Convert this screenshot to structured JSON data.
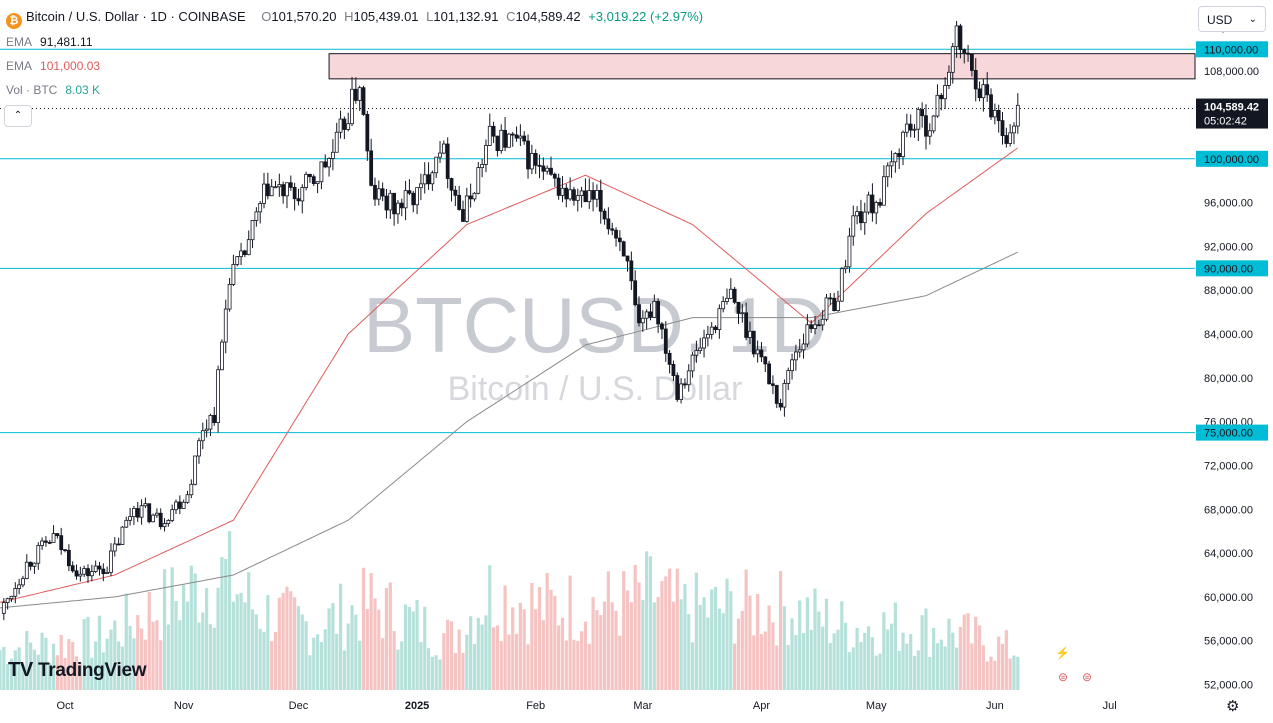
{
  "header": {
    "symbol_icon": "bitcoin-icon",
    "symbol_glyph": "₿",
    "title": "Bitcoin / U.S. Dollar · 1D · COINBASE",
    "open_key": "O",
    "open": "101,570.20",
    "high_key": "H",
    "high": "105,439.01",
    "low_key": "L",
    "low": "101,132.91",
    "close_key": "C",
    "close": "104,589.42",
    "change": "+3,019.22 (+2.97%)"
  },
  "indicators": [
    {
      "name": "EMA",
      "value": "91,481.11",
      "color": "#787b86"
    },
    {
      "name": "EMA",
      "value": "101,000.03",
      "color": "#e05a5a"
    },
    {
      "name": "Vol · BTC",
      "value": "8.03 K",
      "color": "#26a69a"
    }
  ],
  "collapse_glyph": "⌃",
  "currency": {
    "value": "USD",
    "chevron": "⌄"
  },
  "watermark": {
    "symbol": "BTCUSD, 1D",
    "name": "Bitcoin / U.S. Dollar"
  },
  "branding": {
    "logo_mark": "TV",
    "name": "TradingView"
  },
  "settings_glyph": "⚙",
  "colors": {
    "up": "#131722",
    "down": "#131722",
    "level_line": "#00bcd4",
    "resistance_zone": "#f8d7da",
    "ema_fast": "#e05a5a",
    "ema_slow": "#8a8a8a",
    "volume_up": "#a8dcd4",
    "volume_down": "#f4b8b8",
    "last_price_bg": "#131722",
    "level_label_bg": "#00bcd4"
  },
  "chart_data": {
    "type": "candlestick",
    "y_axis": {
      "ticks": [
        52000,
        56000,
        60000,
        64000,
        68000,
        72000,
        76000,
        80000,
        84000,
        88000,
        92000,
        96000,
        100000,
        104000,
        108000,
        112000
      ],
      "tick_labels": [
        "52,000.00",
        "56,000.00",
        "60,000.00",
        "64,000.00",
        "68,000.00",
        "72,000.00",
        "76,000.00",
        "80,000.00",
        "84,000.00",
        "88,000.00",
        "92,000.00",
        "96,000.00",
        "100,000.00",
        "104,000.00",
        "108,000.00",
        "112,000.00"
      ],
      "range": [
        51500,
        114500
      ]
    },
    "x_axis": {
      "labels": [
        "Oct",
        "Nov",
        "Dec",
        "2025",
        "Feb",
        "Mar",
        "Apr",
        "May",
        "Jun",
        "Jul"
      ],
      "label_dates": [
        "2024-10-01",
        "2024-11-01",
        "2024-12-01",
        "2025-01-01",
        "2025-02-01",
        "2025-03-01",
        "2025-04-01",
        "2025-05-01",
        "2025-06-01",
        "2025-07-01"
      ],
      "range": [
        "2024-09-14",
        "2025-07-22"
      ]
    },
    "horizontal_levels": [
      {
        "price": 110000,
        "label": "110,000.00"
      },
      {
        "price": 100000,
        "label": "100,000.00"
      },
      {
        "price": 90000,
        "label": "90,000.00"
      },
      {
        "price": 75000,
        "label": "75,000.00"
      }
    ],
    "resistance_zone": {
      "from_date": "2024-12-09",
      "to_date": "2025-07-22",
      "low": 107300,
      "high": 109600
    },
    "last_price": {
      "value": 104589.42,
      "label": "104,589.42",
      "countdown": "05:02:42"
    },
    "close_series": {
      "dates": [
        "2024-09-14",
        "2024-09-21",
        "2024-09-28",
        "2024-10-05",
        "2024-10-12",
        "2024-10-19",
        "2024-10-26",
        "2024-11-02",
        "2024-11-06",
        "2024-11-09",
        "2024-11-13",
        "2024-11-16",
        "2024-11-23",
        "2024-11-30",
        "2024-12-05",
        "2024-12-10",
        "2024-12-17",
        "2024-12-20",
        "2024-12-26",
        "2025-01-02",
        "2025-01-07",
        "2025-01-13",
        "2025-01-20",
        "2025-01-27",
        "2025-02-03",
        "2025-02-10",
        "2025-02-17",
        "2025-02-24",
        "2025-02-28",
        "2025-03-04",
        "2025-03-10",
        "2025-03-17",
        "2025-03-24",
        "2025-03-31",
        "2025-04-06",
        "2025-04-09",
        "2025-04-14",
        "2025-04-21",
        "2025-04-25",
        "2025-05-02",
        "2025-05-09",
        "2025-05-16",
        "2025-05-22",
        "2025-05-29",
        "2025-06-05",
        "2025-06-07"
      ],
      "values": [
        58500,
        63000,
        65500,
        62000,
        62800,
        68300,
        67000,
        69500,
        75500,
        76800,
        89500,
        90500,
        97500,
        96500,
        98000,
        100500,
        107000,
        97000,
        95500,
        97000,
        101500,
        94500,
        102000,
        101500,
        98500,
        96500,
        96000,
        92000,
        84000,
        87000,
        79000,
        83500,
        87500,
        82500,
        77500,
        82000,
        84800,
        87500,
        94500,
        96500,
        103000,
        103500,
        111000,
        106000,
        101800,
        104589
      ]
    },
    "ema_200": {
      "dates": [
        "2024-09-14",
        "2024-10-14",
        "2024-11-14",
        "2024-12-14",
        "2025-01-14",
        "2025-02-14",
        "2025-03-14",
        "2025-04-14",
        "2025-05-14",
        "2025-06-07"
      ],
      "values": [
        59000,
        60000,
        62000,
        67000,
        76000,
        83000,
        85500,
        85500,
        87500,
        91481
      ]
    },
    "ema_50": {
      "dates": [
        "2024-09-14",
        "2024-10-14",
        "2024-11-14",
        "2024-12-14",
        "2025-01-14",
        "2025-02-14",
        "2025-03-14",
        "2025-04-14",
        "2025-05-14",
        "2025-06-07"
      ],
      "values": [
        59500,
        62000,
        67000,
        84000,
        94000,
        98500,
        94000,
        85000,
        95000,
        101000
      ]
    },
    "volume_series": {
      "dates": [
        "2024-09-14",
        "2024-10-10",
        "2024-11-06",
        "2024-11-12",
        "2024-11-20",
        "2024-12-05",
        "2024-12-20",
        "2025-01-10",
        "2025-01-20",
        "2025-02-03",
        "2025-02-25",
        "2025-03-03",
        "2025-03-11",
        "2025-04-07",
        "2025-04-23",
        "2025-05-09",
        "2025-05-22",
        "2025-06-05"
      ],
      "values": [
        0.35,
        0.45,
        0.92,
        1.0,
        0.7,
        0.55,
        0.75,
        0.45,
        0.85,
        0.72,
        0.75,
        0.85,
        0.7,
        0.72,
        0.55,
        0.55,
        0.5,
        0.35
      ]
    }
  }
}
